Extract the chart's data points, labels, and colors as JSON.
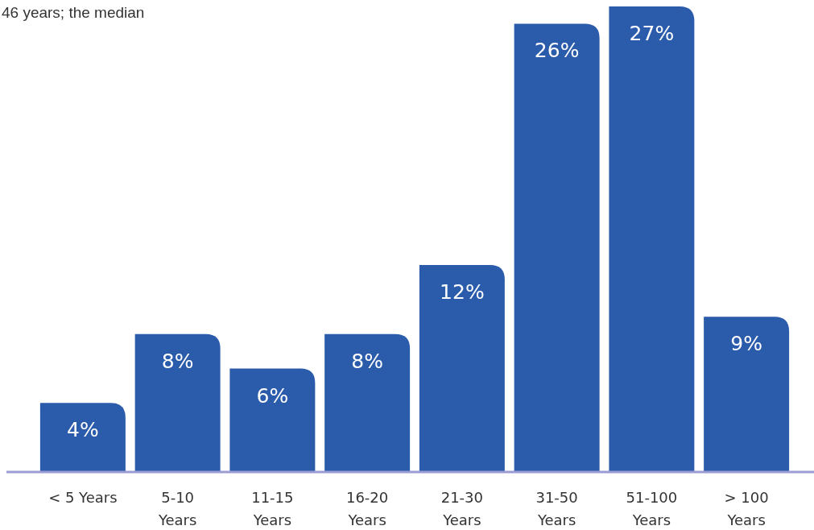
{
  "chart_data": {
    "type": "bar",
    "annotations": [
      "46 years; the median"
    ],
    "categories": [
      "< 5 Years",
      "5-10\nYears",
      "11-15\nYears",
      "16-20\nYears",
      "21-30\nYears",
      "31-50\nYears",
      "51-100\nYears",
      "> 100\nYears"
    ],
    "values": [
      4,
      8,
      6,
      8,
      12,
      26,
      27,
      9
    ],
    "color": "#2b5cab",
    "value_labels": [
      "4%",
      "8%",
      "6%",
      "8%",
      "12%",
      "26%",
      "27%",
      "9%"
    ]
  }
}
